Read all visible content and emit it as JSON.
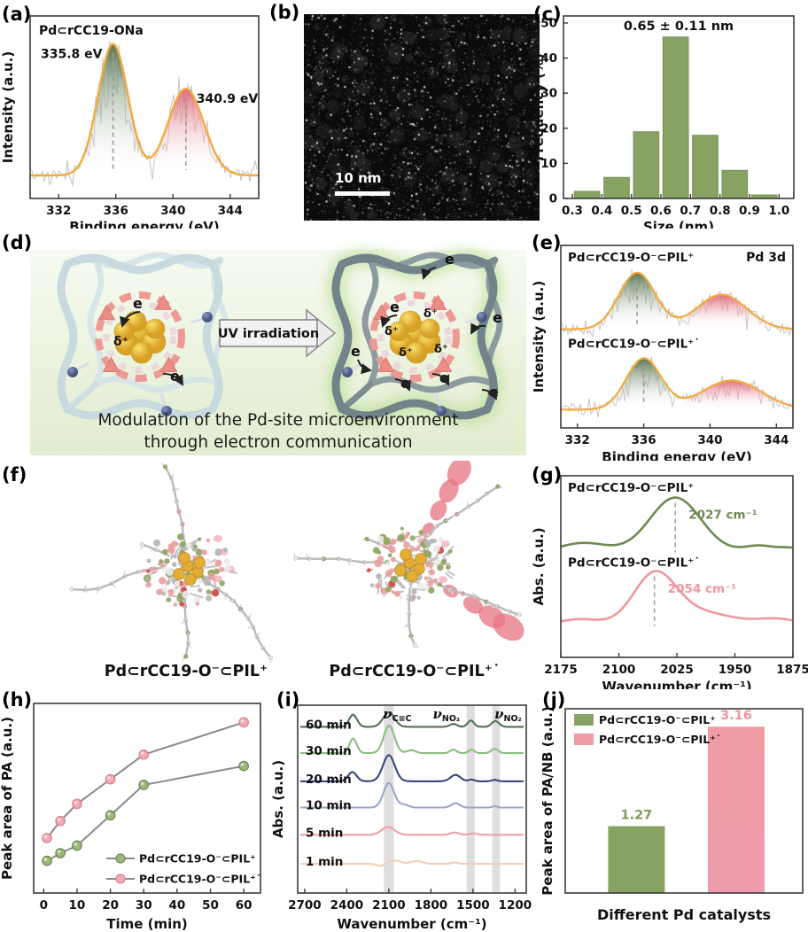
{
  "colors": {
    "green": "#87a263",
    "green_dark": "#5e7d48",
    "green_text": "#6d8c52",
    "pink": "#ef9aa4",
    "pink_dark": "#d9848e",
    "pink_text": "#f0949f",
    "orange": "#f3a93c",
    "noise_gray": "#c4c4c4",
    "frame": "#3a3a3a"
  },
  "panels": {
    "a": {
      "tag": "(a)",
      "title": "Pd⊂rCC19-ONa",
      "xlabel": "Binding energy (eV)",
      "ylabel": "Intensity (a.u.)",
      "peak1_label": "335.8 eV",
      "peak2_label": "340.9 eV"
    },
    "b": {
      "tag": "(b)",
      "scale_bar": "10 nm"
    },
    "c": {
      "tag": "(c)",
      "annotation": "0.65 ± 0.11 nm",
      "xlabel": "Size (nm)",
      "ylabel": "Frequency (%)"
    },
    "d": {
      "tag": "(d)",
      "arrow_label": "UV irradiation",
      "caption_line1": "Modulation of the Pd-site microenvironment",
      "caption_line2": "through electron communication",
      "electron_label": "e",
      "delta_label": "δ⁺"
    },
    "e": {
      "tag": "(e)",
      "corner_label": "Pd 3d",
      "series1_label": "Pd⊂rCC19-O⁻⊂PIL⁺",
      "series2_label": "Pd⊂rCC19-O⁻⊂PIL⁺˙",
      "xlabel": "Binding energy (eV)",
      "ylabel": "Intensity (a.u.)"
    },
    "f": {
      "tag": "(f)",
      "left_label": "Pd⊂rCC19-O⁻⊂PIL⁺",
      "right_label": "Pd⊂rCC19-O⁻⊂PIL⁺˙"
    },
    "g": {
      "tag": "(g)",
      "series1_label": "Pd⊂rCC19-O⁻⊂PIL⁺",
      "series2_label": "Pd⊂rCC19-O⁻⊂PIL⁺˙",
      "peak1_label": "2027 cm⁻¹",
      "peak2_label": "2054 cm⁻¹",
      "xlabel": "Wavenumber (cm⁻¹)",
      "ylabel": "Abs. (a.u.)"
    },
    "h": {
      "tag": "(h)",
      "xlabel": "Time (min)",
      "ylabel": "Peak area of PA (a.u.)",
      "legend": [
        "Pd⊂rCC19-O⁻⊂PIL⁺",
        "Pd⊂rCC19-O⁻⊂PIL⁺˙"
      ]
    },
    "i": {
      "tag": "(i)",
      "xlabel": "Wavenumber (cm⁻¹)",
      "ylabel": "Abs. (a.u.)",
      "time_labels": [
        "60 min",
        "30 min",
        "20 min",
        "10 min",
        "5 min",
        "1 min"
      ],
      "band_labels": [
        {
          "base": "ν",
          "sub": "C≡C"
        },
        {
          "base": "ν",
          "sub": "NO₂"
        },
        {
          "base": "ν",
          "sub": "NO₂"
        }
      ]
    },
    "j": {
      "tag": "(j)",
      "xlabel": "Different Pd catalysts",
      "ylabel": "Peak area of PA/NB (a.u.)",
      "legend": [
        "Pd⊂rCC19-O⁻⊂PIL⁺",
        "Pd⊂rCC19-O⁻⊂PIL⁺˙"
      ],
      "bar_labels": [
        "1.27",
        "3.16"
      ]
    }
  },
  "chart_data": [
    {
      "id": "a",
      "type": "area",
      "title": "Pd⊂rCC19-ONa",
      "xlabel": "Binding energy (eV)",
      "ylabel": "Intensity (a.u.)",
      "xlim": [
        330,
        346
      ],
      "xticks": [
        332,
        336,
        340,
        344
      ],
      "peaks": [
        {
          "c": 335.8,
          "h": 1.0,
          "s": 1.05,
          "color": "green",
          "label": "335.8 eV"
        },
        {
          "c": 340.9,
          "h": 0.66,
          "s": 1.25,
          "color": "pink",
          "label": "340.9 eV"
        }
      ]
    },
    {
      "id": "c",
      "type": "bar",
      "title": "0.65 ± 0.11 nm",
      "xlabel": "Size (nm)",
      "ylabel": "Frequency (%)",
      "categories": [
        0.35,
        0.45,
        0.55,
        0.65,
        0.75,
        0.85,
        0.95
      ],
      "values": [
        2,
        6,
        19,
        46,
        18,
        8,
        1
      ],
      "xticks": [
        0.3,
        0.4,
        0.5,
        0.6,
        0.7,
        0.8,
        0.9,
        1.0
      ],
      "yticks": [
        0,
        10,
        20,
        30,
        40,
        50
      ],
      "xlim": [
        0.27,
        1.05
      ],
      "ylim": [
        0,
        52
      ]
    },
    {
      "id": "e",
      "type": "area",
      "xlim": [
        331,
        345
      ],
      "xticks": [
        332,
        336,
        340,
        344
      ],
      "spectra": [
        {
          "label": "Pd⊂rCC19-O⁻⊂PIL⁺",
          "baseline": 0.46,
          "peaks": [
            {
              "c": 335.6,
              "h": 0.31,
              "s": 1.1,
              "color": "green"
            },
            {
              "c": 340.7,
              "h": 0.19,
              "s": 1.5,
              "color": "pink"
            }
          ]
        },
        {
          "label": "Pd⊂rCC19-O⁻⊂PIL⁺˙",
          "baseline": 0.9,
          "peaks": [
            {
              "c": 336.0,
              "h": 0.28,
              "s": 1.05,
              "color": "green"
            },
            {
              "c": 341.3,
              "h": 0.16,
              "s": 1.8,
              "color": "pink"
            }
          ]
        }
      ]
    },
    {
      "id": "g",
      "type": "line",
      "xlim": [
        2175,
        1875
      ],
      "xticks": [
        2175,
        2100,
        2025,
        1950,
        1875
      ],
      "series": [
        {
          "label": "Pd⊂rCC19-O⁻⊂PIL⁺",
          "peak": 2027,
          "peak_label": "2027 cm⁻¹",
          "baseline": 0.42,
          "color": "#6d8b50",
          "features": [
            {
              "c": 2145,
              "h": 0.05,
              "s": 30
            },
            {
              "c": 2027,
              "h": 0.3,
              "s": 33
            },
            {
              "c": 1918,
              "h": 0.035,
              "s": 20
            },
            {
              "c": 1878,
              "h": 0.02,
              "s": 14
            }
          ]
        },
        {
          "label": "Pd⊂rCC19-O⁻⊂PIL⁺˙",
          "peak": 2054,
          "peak_label": "2054 cm⁻¹",
          "baseline": 0.82,
          "color": "#f0989e",
          "features": [
            {
              "c": 2150,
              "h": 0.03,
              "s": 25
            },
            {
              "c": 2054,
              "h": 0.26,
              "s": 27
            },
            {
              "c": 2000,
              "h": 0.07,
              "s": 45
            },
            {
              "c": 1895,
              "h": 0.03,
              "s": 25
            }
          ]
        }
      ]
    },
    {
      "id": "h",
      "type": "line",
      "x": [
        1,
        5,
        10,
        20,
        30,
        60
      ],
      "series": [
        {
          "name": "Pd⊂rCC19-O⁻⊂PIL⁺",
          "values": [
            0.17,
            0.21,
            0.25,
            0.41,
            0.57,
            0.67
          ],
          "color": "green"
        },
        {
          "name": "Pd⊂rCC19-O⁻⊂PIL⁺˙",
          "values": [
            0.29,
            0.38,
            0.47,
            0.6,
            0.73,
            0.9
          ],
          "color": "pink"
        }
      ],
      "xticks": [
        0,
        10,
        20,
        30,
        40,
        50,
        60
      ],
      "xlim": [
        -3,
        65
      ],
      "ylim": [
        0,
        1
      ]
    },
    {
      "id": "i",
      "type": "line",
      "xlim": [
        2750,
        1120
      ],
      "xticks": [
        2700,
        2400,
        2100,
        1800,
        1500,
        1200
      ],
      "bands": [
        [
          2135,
          2065
        ],
        [
          1545,
          1488
        ],
        [
          1362,
          1308
        ]
      ],
      "series": [
        {
          "label": "60 min",
          "color": "#527057",
          "baseline": 0.115,
          "features": [
            {
              "c": 2355,
              "h": 0.42,
              "s": 28
            },
            {
              "c": 2100,
              "h": 0.5,
              "s": 40
            },
            {
              "c": 1640,
              "h": 0.1,
              "s": 25
            },
            {
              "c": 1515,
              "h": 0.22,
              "s": 22
            },
            {
              "c": 1340,
              "h": 0.2,
              "s": 26
            }
          ]
        },
        {
          "label": "30 min",
          "color": "#8abf7e",
          "baseline": 0.255,
          "features": [
            {
              "c": 2355,
              "h": 0.5,
              "s": 26
            },
            {
              "c": 2098,
              "h": 0.95,
              "s": 38
            },
            {
              "c": 1940,
              "h": 0.1,
              "s": 30
            },
            {
              "c": 1640,
              "h": 0.12,
              "s": 22
            },
            {
              "c": 1510,
              "h": 0.12,
              "s": 20
            },
            {
              "c": 1345,
              "h": 0.15,
              "s": 24
            }
          ]
        },
        {
          "label": "20 min",
          "color": "#37487c",
          "baseline": 0.405,
          "features": [
            {
              "c": 2360,
              "h": 0.32,
              "s": 30
            },
            {
              "c": 2100,
              "h": 0.9,
              "s": 42
            },
            {
              "c": 1625,
              "h": 0.22,
              "s": 35
            },
            {
              "c": 1510,
              "h": 0.06,
              "s": 20
            },
            {
              "c": 1345,
              "h": 0.05,
              "s": 20
            }
          ]
        },
        {
          "label": "10 min",
          "color": "#9aa6ce",
          "baseline": 0.545,
          "features": [
            {
              "c": 2100,
              "h": 0.85,
              "s": 38
            },
            {
              "c": 1990,
              "h": 0.1,
              "s": 30
            },
            {
              "c": 1625,
              "h": 0.15,
              "s": 30
            },
            {
              "c": 1345,
              "h": 0.05,
              "s": 18
            }
          ]
        },
        {
          "label": "5 min",
          "color": "#eea2a2",
          "baseline": 0.69,
          "features": [
            {
              "c": 2105,
              "h": 0.27,
              "s": 45
            },
            {
              "c": 1630,
              "h": 0.08,
              "s": 30
            },
            {
              "c": 1500,
              "h": 0.05,
              "s": 25
            }
          ]
        },
        {
          "label": "1 min",
          "color": "#f4cdb4",
          "baseline": 0.845,
          "features": [
            {
              "c": 2160,
              "h": -0.08,
              "s": 25
            },
            {
              "c": 2060,
              "h": 0.12,
              "s": 45
            },
            {
              "c": 1900,
              "h": 0.1,
              "s": 40
            },
            {
              "c": 1630,
              "h": 0.05,
              "s": 25
            }
          ]
        }
      ]
    },
    {
      "id": "j",
      "type": "bar",
      "categories": [
        "Pd⊂rCC19-O⁻⊂PIL⁺",
        "Pd⊂rCC19-O⁻⊂PIL⁺˙"
      ],
      "values": [
        1.27,
        3.16
      ],
      "ylim": [
        0,
        3.5
      ],
      "xlabel": "Different Pd catalysts",
      "ylabel": "Peak area of PA/NB (a.u.)"
    }
  ]
}
